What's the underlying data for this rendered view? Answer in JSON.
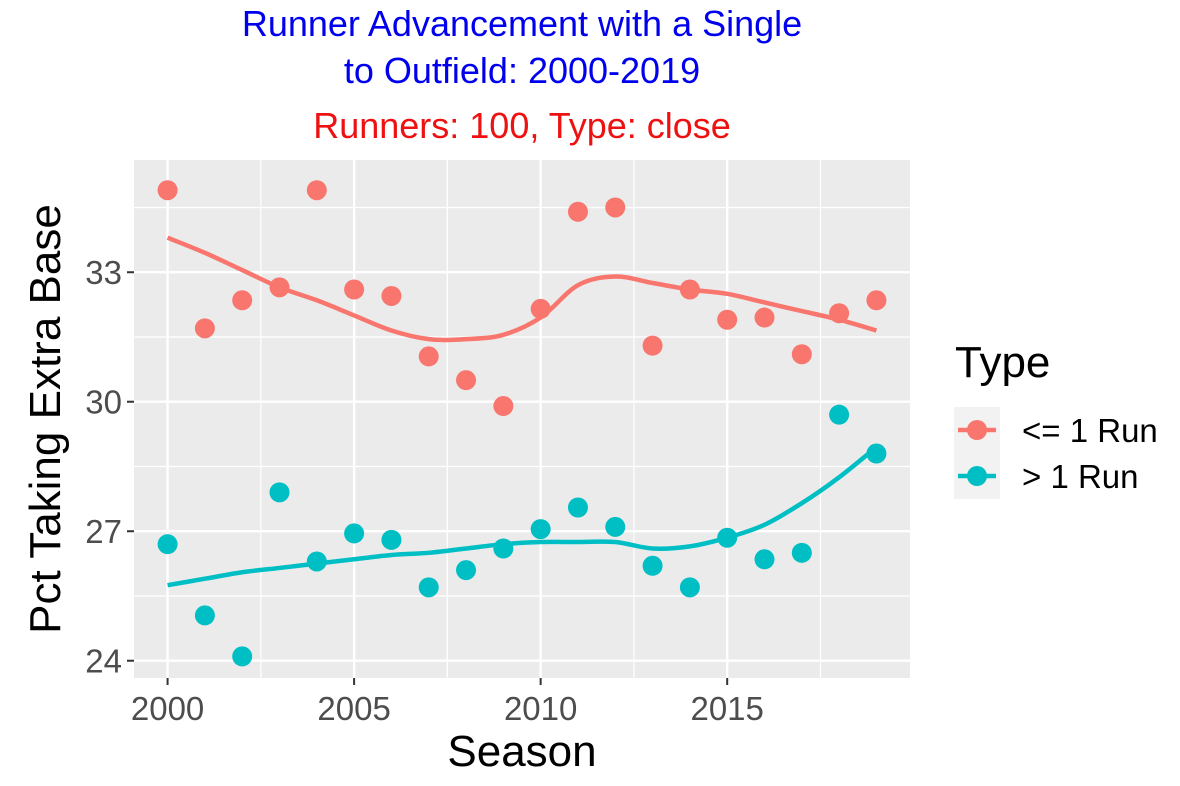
{
  "colors": {
    "title": "#0000ee",
    "subtitle": "#ee1111",
    "series_close": "#f8766d",
    "series_wide": "#00bfc4",
    "panel_bg": "#ebebeb",
    "grid": "#ffffff",
    "axis_text": "#4d4d4d",
    "axis_title": "#000000"
  },
  "chart_data": {
    "type": "scatter",
    "title_line1": "Runner Advancement with a Single",
    "title_line2": "to Outfield: 2000-2019",
    "subtitle": "Runners: 100, Type: close",
    "xlabel": "Season",
    "ylabel": "Pct Taking Extra Base",
    "xlim": [
      1999.1,
      2019.9
    ],
    "ylim": [
      23.6,
      35.6
    ],
    "x_ticks": [
      2000,
      2005,
      2010,
      2015
    ],
    "x_tick_labels": [
      "2000",
      "2005",
      "2010",
      "2015"
    ],
    "y_ticks": [
      24,
      27,
      30,
      33
    ],
    "y_tick_labels": [
      "24",
      "27",
      "30",
      "33"
    ],
    "grid": true,
    "legend": {
      "title": "Type",
      "placement": "right",
      "entries": [
        "<= 1 Run",
        "> 1 Run"
      ]
    },
    "x": [
      2000,
      2001,
      2002,
      2003,
      2004,
      2005,
      2006,
      2007,
      2008,
      2009,
      2010,
      2011,
      2012,
      2013,
      2014,
      2015,
      2016,
      2017,
      2018,
      2019
    ],
    "series": [
      {
        "name": "<= 1 Run",
        "values": [
          34.9,
          31.7,
          32.35,
          32.65,
          34.9,
          32.6,
          32.45,
          31.05,
          30.5,
          29.9,
          32.15,
          34.4,
          34.5,
          31.3,
          32.6,
          31.9,
          31.95,
          31.1,
          32.05,
          32.35
        ],
        "smooth": [
          33.8,
          33.45,
          33.05,
          32.65,
          32.35,
          32.0,
          31.65,
          31.45,
          31.45,
          31.55,
          31.95,
          32.7,
          32.9,
          32.75,
          32.6,
          32.5,
          32.3,
          32.1,
          31.9,
          31.65
        ]
      },
      {
        "name": "> 1 Run",
        "values": [
          26.7,
          25.05,
          24.1,
          27.9,
          26.3,
          26.95,
          26.8,
          25.7,
          26.1,
          26.6,
          27.05,
          27.55,
          27.1,
          26.2,
          25.7,
          26.85,
          26.35,
          26.5,
          29.7,
          28.8
        ],
        "smooth": [
          25.75,
          25.9,
          26.05,
          26.15,
          26.25,
          26.35,
          26.45,
          26.5,
          26.6,
          26.7,
          26.75,
          26.75,
          26.75,
          26.6,
          26.65,
          26.85,
          27.15,
          27.65,
          28.25,
          28.95
        ]
      }
    ]
  }
}
